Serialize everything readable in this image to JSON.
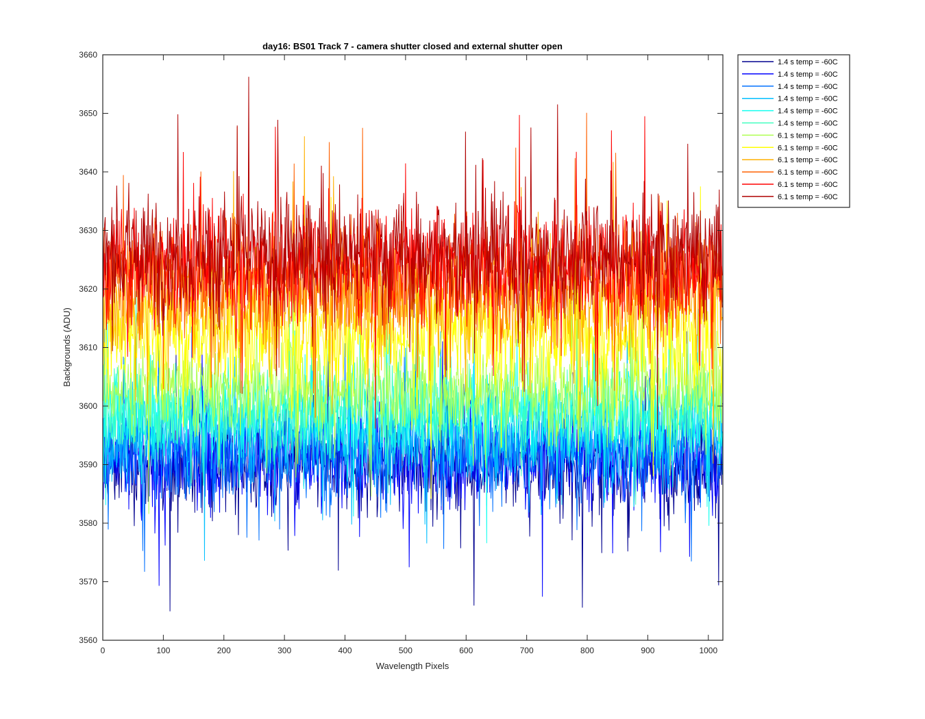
{
  "chart_data": {
    "type": "line",
    "title": "day16: BS01  Track 7 - camera shutter closed and external shutter open",
    "xlabel": "Wavelength Pixels",
    "ylabel": "Backgrounds (ADU)",
    "xlim": [
      0,
      1024
    ],
    "ylim": [
      3560,
      3660
    ],
    "xticks": [
      0,
      100,
      200,
      300,
      400,
      500,
      600,
      700,
      800,
      900,
      1000
    ],
    "yticks": [
      3560,
      3570,
      3580,
      3590,
      3600,
      3610,
      3620,
      3630,
      3640,
      3650,
      3660
    ],
    "grid": false,
    "legend_position": "outside-top-right",
    "series_summary_note": "12 noisy traces over 1024 pixels; values summarized by approximate mean level and noise spread",
    "series": [
      {
        "name": "1.4 s temp = -60C",
        "color": "#00008f",
        "mean": 3590,
        "spread": 5.5
      },
      {
        "name": "1.4 s temp = -60C",
        "color": "#0000ff",
        "mean": 3591,
        "spread": 5.5
      },
      {
        "name": "1.4 s temp = -60C",
        "color": "#0070ff",
        "mean": 3592,
        "spread": 5.5
      },
      {
        "name": "1.4 s temp = -60C",
        "color": "#00bfff",
        "mean": 3595,
        "spread": 5.0
      },
      {
        "name": "1.4 s temp = -60C",
        "color": "#10ffef",
        "mean": 3598,
        "spread": 5.0
      },
      {
        "name": "1.4 s temp = -60C",
        "color": "#40ffbf",
        "mean": 3600,
        "spread": 5.0
      },
      {
        "name": "6.1 s temp = -60C",
        "color": "#afff50",
        "mean": 3603,
        "spread": 5.0
      },
      {
        "name": "6.1 s temp = -60C",
        "color": "#ffff00",
        "mean": 3612,
        "spread": 6.5
      },
      {
        "name": "6.1 s temp = -60C",
        "color": "#ffb000",
        "mean": 3618,
        "spread": 6.5
      },
      {
        "name": "6.1 s temp = -60C",
        "color": "#ff6000",
        "mean": 3622,
        "spread": 6.5
      },
      {
        "name": "6.1 s temp = -60C",
        "color": "#ff0000",
        "mean": 3624,
        "spread": 6.5
      },
      {
        "name": "6.1 s temp = -60C",
        "color": "#af0000",
        "mean": 3626,
        "spread": 7.0
      }
    ]
  }
}
